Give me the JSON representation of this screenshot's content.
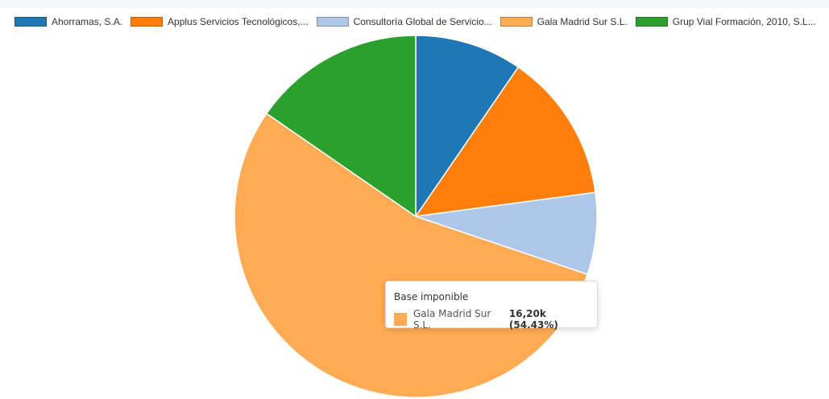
{
  "chart_data": {
    "type": "pie",
    "legend_position": "top",
    "categories": [
      "Ahorramas, S.A.",
      "Applus Servicios Tecnológicos,...",
      "Consultoría Global de Servicio...",
      "Gala Madrid Sur S.L.",
      "Grup Vial Formación, 2010, S.L..."
    ],
    "colors": [
      "#1f77b4",
      "#ff7f0e",
      "#aec7e8",
      "#ffaa55",
      "#2ca02c"
    ],
    "shares_percent": [
      9.57,
      13.32,
      7.3,
      54.43,
      15.38
    ],
    "tooltip": {
      "title": "Base imponible",
      "label": "Gala Madrid Sur S.L.",
      "color": "#ffaa55",
      "value": "16,20k (54.43%)"
    }
  }
}
